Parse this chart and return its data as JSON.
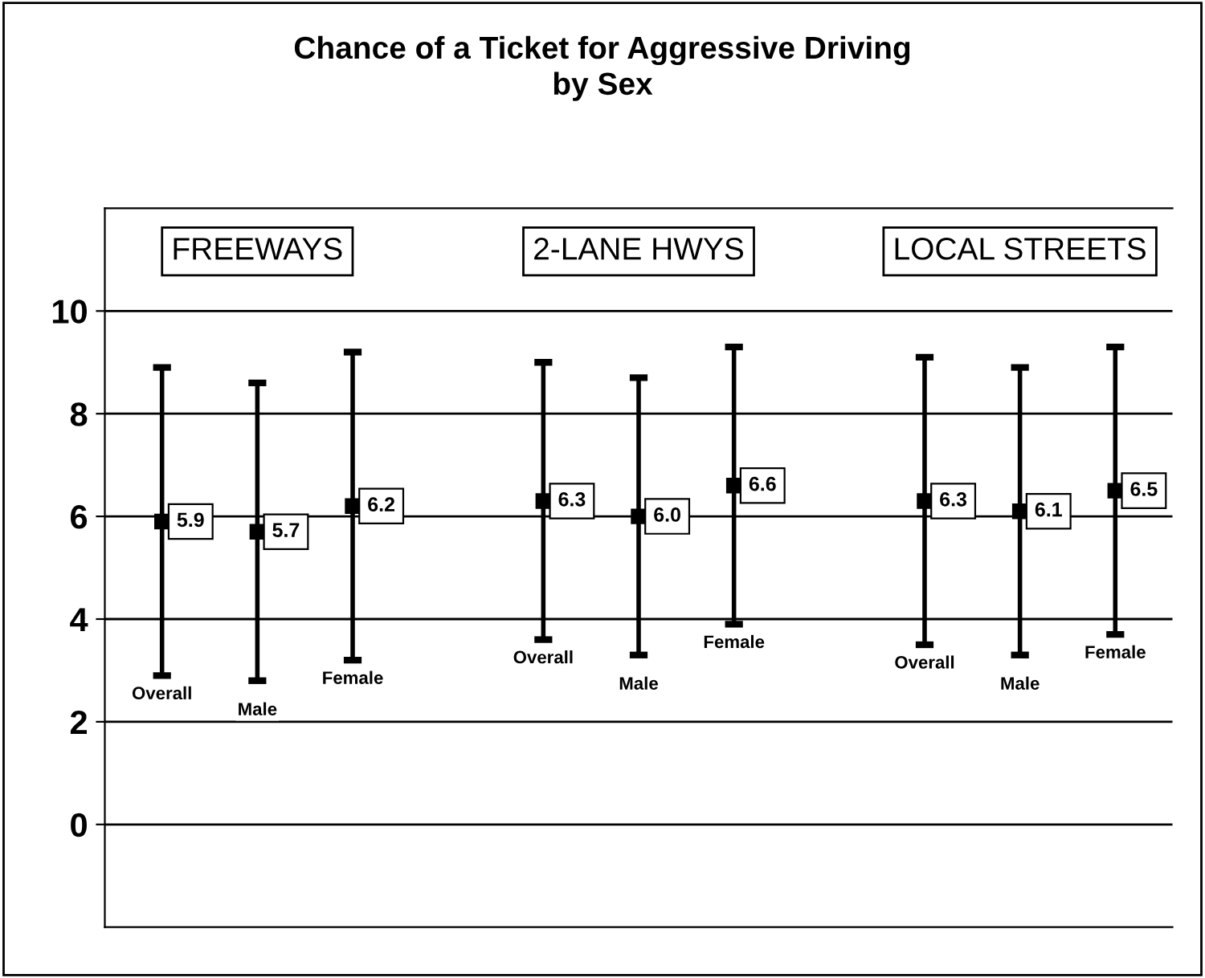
{
  "chart_data": {
    "type": "scatter",
    "title": "Chance of a Ticket for Aggressive Driving\nby Sex",
    "categories": [
      "Overall",
      "Male",
      "Female",
      null,
      "Overall",
      "Male",
      "Female",
      null,
      "Overall",
      "Male",
      "Female"
    ],
    "values": [
      5.9,
      5.7,
      6.2,
      null,
      6.3,
      6.0,
      6.6,
      null,
      6.3,
      6.1,
      6.5
    ],
    "value_labels": [
      "5.9",
      "5.7",
      "6.2",
      null,
      "6.3",
      "6.0",
      "6.6",
      null,
      "6.3",
      "6.1",
      "6.5"
    ],
    "errors": [
      [
        2.9,
        8.9
      ],
      [
        2.8,
        8.6
      ],
      [
        3.2,
        9.2
      ],
      null,
      [
        3.6,
        9.0
      ],
      [
        3.3,
        8.7
      ],
      [
        3.9,
        9.3
      ],
      null,
      [
        3.5,
        9.1
      ],
      [
        3.3,
        8.9
      ],
      [
        3.7,
        9.3
      ]
    ],
    "color": "#000000",
    "annotations": [
      "FREEWAYS",
      "2-LANE HWYS",
      "LOCAL STREETS"
    ],
    "ylim": [
      -2,
      12
    ],
    "yticks": [
      0,
      2,
      4,
      6,
      8,
      10
    ],
    "grid": "y",
    "marker": "square",
    "legend": false
  }
}
